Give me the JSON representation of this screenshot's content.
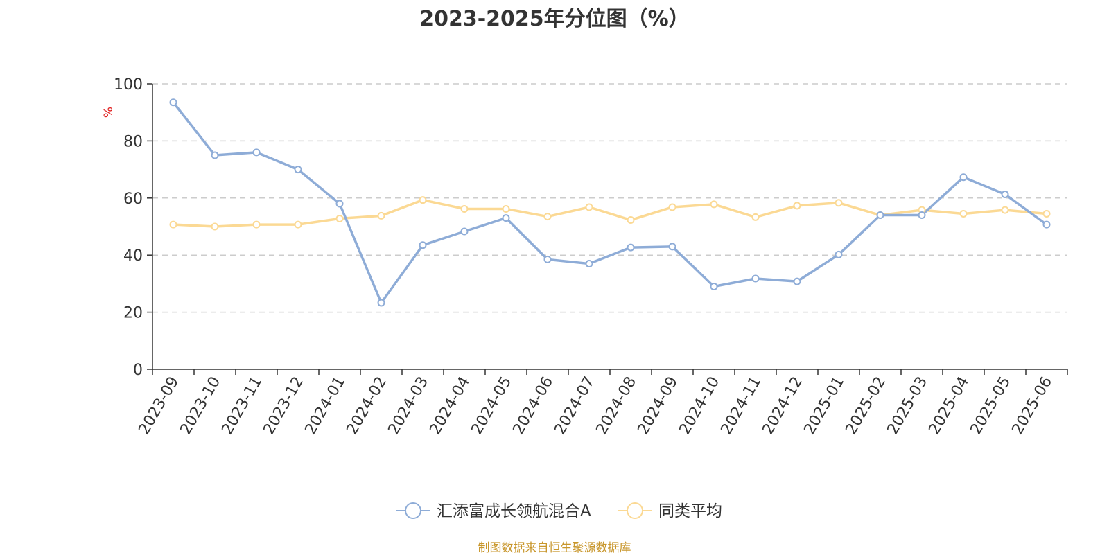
{
  "chart_data": {
    "type": "line",
    "title": "2023-2025年分位图（%）",
    "ylabel": "%",
    "xlabel": "",
    "ylim": [
      0,
      100
    ],
    "yticks": [
      0,
      20,
      40,
      60,
      80,
      100
    ],
    "grid": "horizontal dashed",
    "legend_position": "bottom",
    "categories": [
      "2023-09",
      "2023-10",
      "2023-11",
      "2023-12",
      "2024-01",
      "2024-02",
      "2024-03",
      "2024-04",
      "2024-05",
      "2024-06",
      "2024-07",
      "2024-08",
      "2024-09",
      "2024-10",
      "2024-11",
      "2024-12",
      "2025-01",
      "2025-02",
      "2025-03",
      "2025-04",
      "2025-05",
      "2025-06"
    ],
    "series": [
      {
        "name": "汇添富成长领航混合A",
        "color": "#8eacd7",
        "values": [
          93.5,
          75.0,
          76.0,
          70.0,
          58.0,
          23.3,
          43.5,
          48.3,
          53.0,
          38.5,
          37.0,
          42.7,
          43.0,
          29.0,
          31.8,
          30.8,
          40.2,
          54.0,
          54.0,
          67.3,
          61.3,
          50.7
        ]
      },
      {
        "name": "同类平均",
        "color": "#fbd994",
        "values": [
          50.7,
          50.0,
          50.7,
          50.7,
          52.8,
          53.8,
          59.3,
          56.2,
          56.2,
          53.5,
          56.8,
          52.3,
          56.8,
          57.8,
          53.3,
          57.3,
          58.3,
          54.0,
          55.8,
          54.5,
          55.8,
          54.5
        ]
      }
    ]
  },
  "footer": {
    "source": "制图数据来自恒生聚源数据库"
  }
}
